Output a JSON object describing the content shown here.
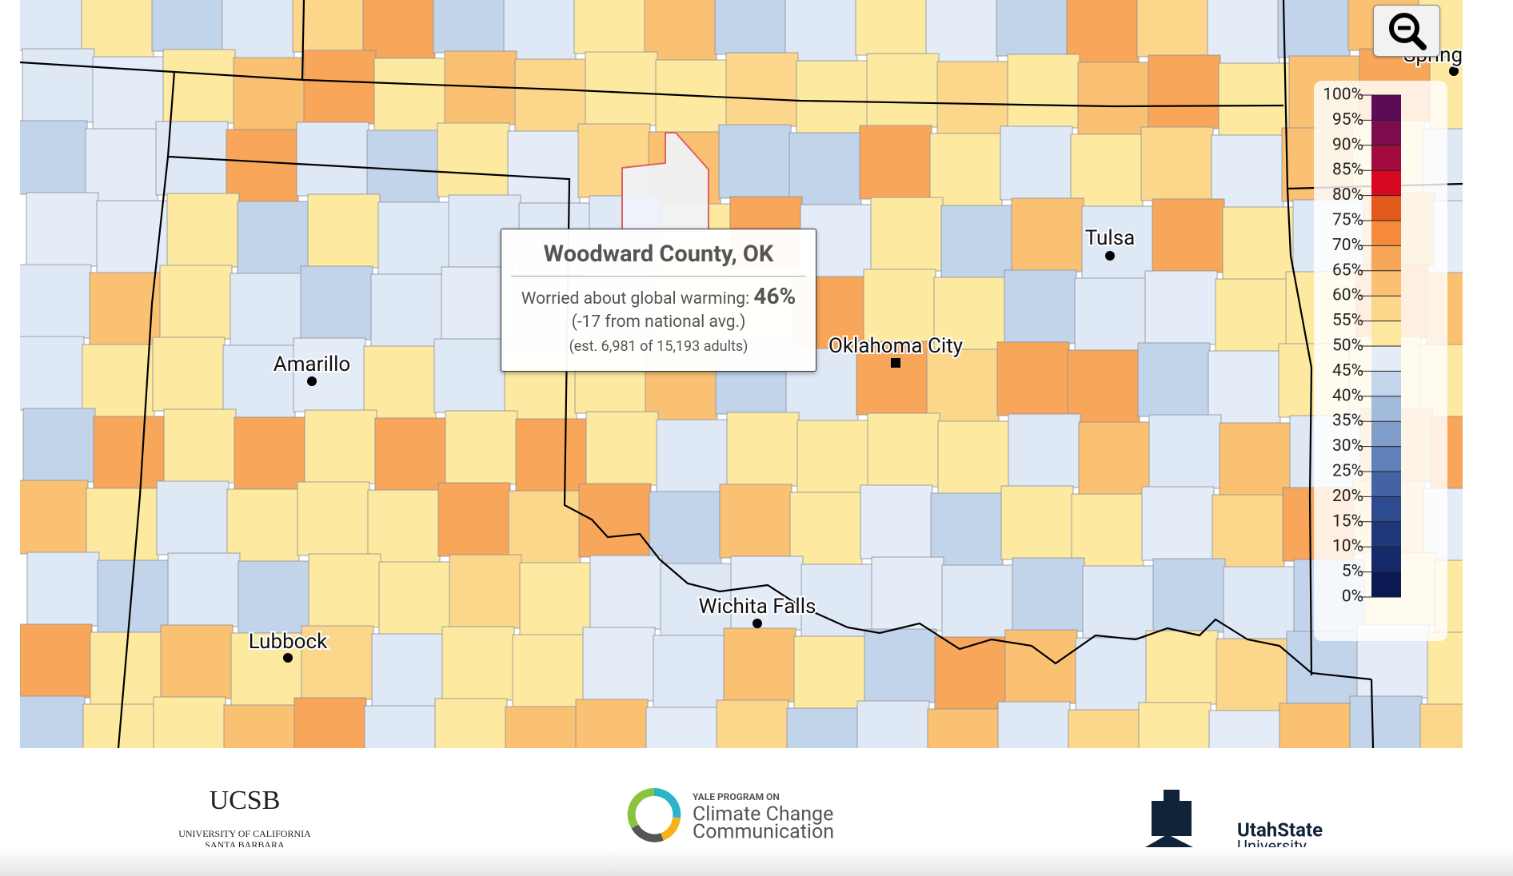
{
  "tooltip": {
    "title": "Woodward County, OK",
    "metric_label": "Worried about global warming:",
    "value": "46%",
    "comparison": "(-17 from national avg.)",
    "estimate": "(est. 6,981 of 15,193 adults)"
  },
  "cities": [
    "Amarillo",
    "Oklahoma City",
    "Tulsa",
    "Lubbock",
    "Wichita Falls",
    "Spring"
  ],
  "legend": {
    "labels": [
      "100%",
      "95%",
      "90%",
      "85%",
      "80%",
      "75%",
      "70%",
      "65%",
      "60%",
      "55%",
      "50%",
      "45%",
      "40%",
      "35%",
      "30%",
      "25%",
      "20%",
      "15%",
      "10%",
      "5%",
      "0%"
    ],
    "colors": [
      "#5c0b55",
      "#7d0c4c",
      "#a10b3d",
      "#d6071f",
      "#e05a1c",
      "#f58b3a",
      "#f8a65a",
      "#fac173",
      "#fcd68b",
      "#fde8a0",
      "#e3ecf7",
      "#c3d5eb",
      "#a2bbdd",
      "#7f9fca",
      "#5f80b9",
      "#4463a5",
      "#2e4b91",
      "#1f387c",
      "#152a6a",
      "#0c1a54"
    ]
  },
  "footer": {
    "ucsb": "UCSB",
    "ucsb_sub1": "UNIVERSITY OF CALIFORNIA",
    "ucsb_sub2": "SANTA BARBARA",
    "yale_pre": "YALE PROGRAM ON",
    "yale_1": "Climate Change",
    "yale_2": "Communication",
    "utah_1": "UtahState",
    "utah_2": "University"
  }
}
